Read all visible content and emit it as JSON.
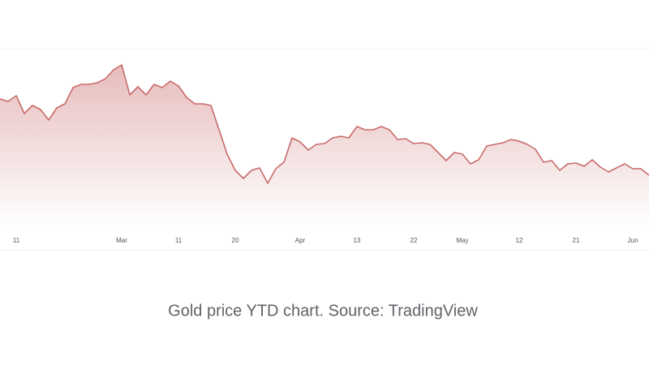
{
  "chart_data": {
    "type": "area",
    "caption": "Gold price YTD chart. Source: TradingView",
    "color": "#c96a6a",
    "ylim": [
      0,
      220
    ],
    "categories": [
      null,
      null,
      "11",
      null,
      null,
      null,
      null,
      null,
      null,
      null,
      null,
      null,
      null,
      null,
      null,
      "Mar",
      null,
      null,
      null,
      null,
      null,
      null,
      "11",
      null,
      null,
      null,
      null,
      null,
      null,
      "20",
      null,
      null,
      null,
      null,
      null,
      null,
      null,
      "Apr",
      null,
      null,
      null,
      null,
      null,
      null,
      "13",
      null,
      null,
      null,
      null,
      null,
      null,
      "22",
      null,
      null,
      null,
      null,
      null,
      "May",
      null,
      null,
      null,
      null,
      null,
      null,
      "12",
      null,
      null,
      null,
      null,
      null,
      null,
      "21",
      null,
      null,
      null,
      null,
      null,
      null,
      "Jun",
      null,
      null
    ],
    "values": [
      158,
      155,
      162,
      140,
      150,
      145,
      132,
      147,
      152,
      172,
      176,
      176,
      178,
      183,
      194,
      200,
      163,
      173,
      163,
      176,
      172,
      180,
      174,
      160,
      152,
      152,
      150,
      120,
      90,
      70,
      60,
      70,
      73,
      54,
      72,
      80,
      110,
      105,
      95,
      102,
      103,
      110,
      112,
      110,
      124,
      120,
      120,
      124,
      120,
      108,
      109,
      103,
      104,
      102,
      92,
      82,
      92,
      90,
      78,
      83,
      100,
      102,
      104,
      108,
      106,
      102,
      96,
      80,
      82,
      70,
      78,
      79,
      75,
      83,
      74,
      68,
      73,
      78,
      72,
      72,
      64
    ]
  }
}
